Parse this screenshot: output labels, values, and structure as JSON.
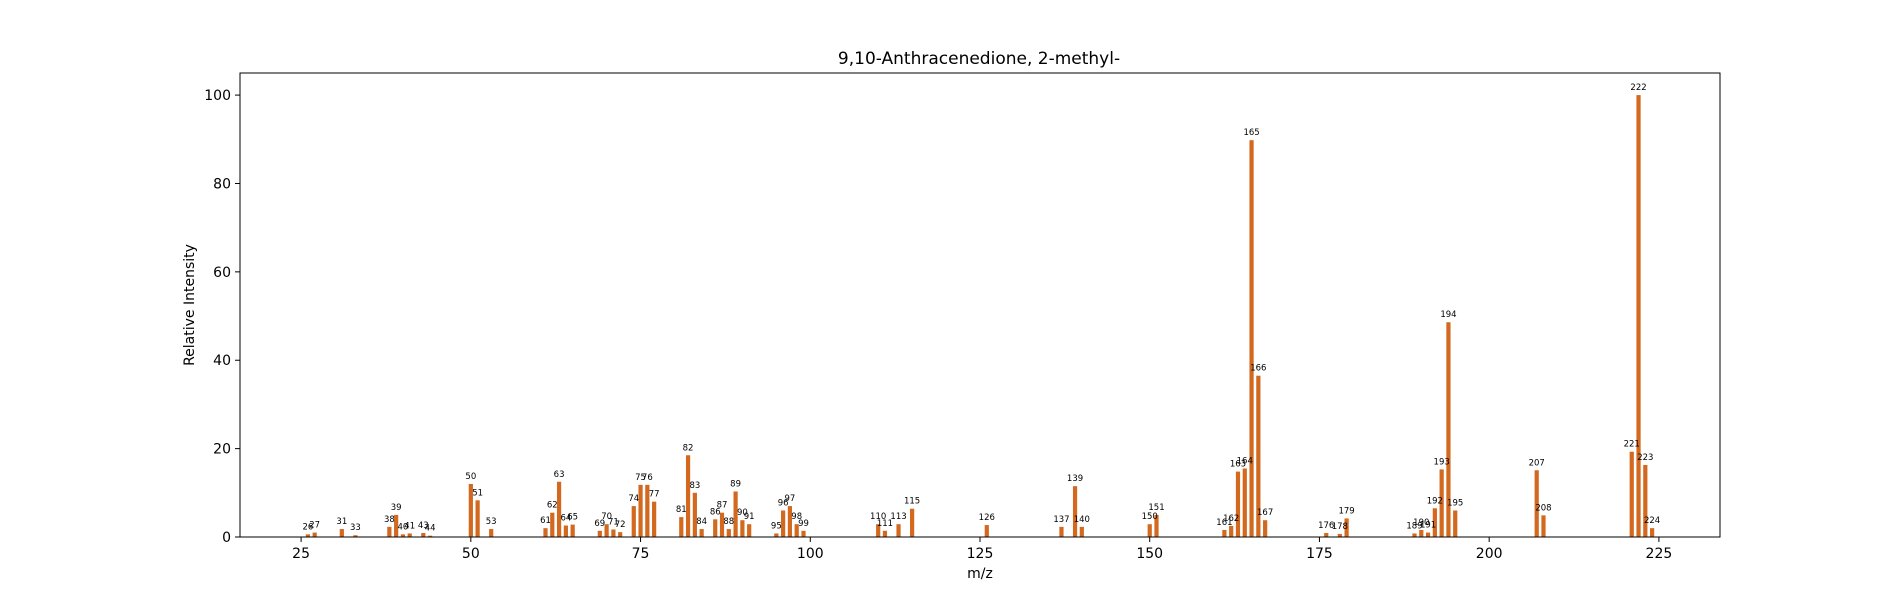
{
  "chart_data": {
    "type": "bar",
    "title": "9,10-Anthracenedione, 2-methyl-",
    "xlabel": "m/z",
    "ylabel": "Relative Intensity",
    "xlim": [
      16,
      234
    ],
    "ylim": [
      0,
      105
    ],
    "xticks": [
      25,
      50,
      75,
      100,
      125,
      150,
      175,
      200,
      225
    ],
    "yticks": [
      0,
      20,
      40,
      60,
      80,
      100
    ],
    "bar_color": "#d2691e",
    "grid": false,
    "peaks": [
      {
        "mz": 26,
        "intensity": 0.6,
        "label": "26"
      },
      {
        "mz": 27,
        "intensity": 1.0,
        "label": "27"
      },
      {
        "mz": 31,
        "intensity": 1.8,
        "label": "31"
      },
      {
        "mz": 33,
        "intensity": 0.4,
        "label": "33"
      },
      {
        "mz": 38,
        "intensity": 2.3,
        "label": "38"
      },
      {
        "mz": 39,
        "intensity": 5.0,
        "label": "39"
      },
      {
        "mz": 40,
        "intensity": 0.6,
        "label": "40"
      },
      {
        "mz": 41,
        "intensity": 0.8,
        "label": "41"
      },
      {
        "mz": 43,
        "intensity": 0.9,
        "label": "43"
      },
      {
        "mz": 44,
        "intensity": 0.3,
        "label": "44"
      },
      {
        "mz": 50,
        "intensity": 12.0,
        "label": "50"
      },
      {
        "mz": 51,
        "intensity": 8.3,
        "label": "51"
      },
      {
        "mz": 53,
        "intensity": 1.8,
        "label": "53"
      },
      {
        "mz": 61,
        "intensity": 2.0,
        "label": "61"
      },
      {
        "mz": 62,
        "intensity": 5.5,
        "label": "62"
      },
      {
        "mz": 63,
        "intensity": 12.5,
        "label": "63"
      },
      {
        "mz": 64,
        "intensity": 2.6,
        "label": "64"
      },
      {
        "mz": 65,
        "intensity": 2.8,
        "label": "65"
      },
      {
        "mz": 69,
        "intensity": 1.4,
        "label": "69"
      },
      {
        "mz": 70,
        "intensity": 2.9,
        "label": "70"
      },
      {
        "mz": 71,
        "intensity": 1.7,
        "label": "71"
      },
      {
        "mz": 72,
        "intensity": 1.1,
        "label": "72"
      },
      {
        "mz": 74,
        "intensity": 7.0,
        "label": "74"
      },
      {
        "mz": 75,
        "intensity": 11.8,
        "label": "75"
      },
      {
        "mz": 76,
        "intensity": 11.8,
        "label": "76"
      },
      {
        "mz": 77,
        "intensity": 8.0,
        "label": "77"
      },
      {
        "mz": 81,
        "intensity": 4.5,
        "label": "81"
      },
      {
        "mz": 82,
        "intensity": 18.5,
        "label": "82"
      },
      {
        "mz": 83,
        "intensity": 10.0,
        "label": "83"
      },
      {
        "mz": 84,
        "intensity": 1.8,
        "label": "84"
      },
      {
        "mz": 86,
        "intensity": 4.0,
        "label": "86"
      },
      {
        "mz": 87,
        "intensity": 5.5,
        "label": "87"
      },
      {
        "mz": 88,
        "intensity": 1.8,
        "label": "88"
      },
      {
        "mz": 89,
        "intensity": 10.3,
        "label": "89"
      },
      {
        "mz": 90,
        "intensity": 3.8,
        "label": "90"
      },
      {
        "mz": 91,
        "intensity": 2.9,
        "label": "91"
      },
      {
        "mz": 95,
        "intensity": 0.8,
        "label": "95"
      },
      {
        "mz": 96,
        "intensity": 6.0,
        "label": "96"
      },
      {
        "mz": 97,
        "intensity": 7.0,
        "label": "97"
      },
      {
        "mz": 98,
        "intensity": 2.9,
        "label": "98"
      },
      {
        "mz": 99,
        "intensity": 1.4,
        "label": "99"
      },
      {
        "mz": 110,
        "intensity": 2.9,
        "label": "110"
      },
      {
        "mz": 111,
        "intensity": 1.4,
        "label": "111"
      },
      {
        "mz": 113,
        "intensity": 2.9,
        "label": "113"
      },
      {
        "mz": 115,
        "intensity": 6.4,
        "label": "115"
      },
      {
        "mz": 126,
        "intensity": 2.7,
        "label": "126"
      },
      {
        "mz": 137,
        "intensity": 2.3,
        "label": "137"
      },
      {
        "mz": 139,
        "intensity": 11.5,
        "label": "139"
      },
      {
        "mz": 140,
        "intensity": 2.3,
        "label": "140"
      },
      {
        "mz": 150,
        "intensity": 2.9,
        "label": "150"
      },
      {
        "mz": 151,
        "intensity": 5.0,
        "label": "151"
      },
      {
        "mz": 161,
        "intensity": 1.6,
        "label": "161"
      },
      {
        "mz": 162,
        "intensity": 2.5,
        "label": "162"
      },
      {
        "mz": 163,
        "intensity": 14.8,
        "label": "163"
      },
      {
        "mz": 164,
        "intensity": 15.5,
        "label": "164"
      },
      {
        "mz": 165,
        "intensity": 89.8,
        "label": "165"
      },
      {
        "mz": 166,
        "intensity": 36.5,
        "label": "166"
      },
      {
        "mz": 167,
        "intensity": 3.8,
        "label": "167"
      },
      {
        "mz": 176,
        "intensity": 0.9,
        "label": "176"
      },
      {
        "mz": 178,
        "intensity": 0.7,
        "label": "178"
      },
      {
        "mz": 179,
        "intensity": 4.2,
        "label": "179"
      },
      {
        "mz": 189,
        "intensity": 0.8,
        "label": "189"
      },
      {
        "mz": 190,
        "intensity": 1.6,
        "label": "190"
      },
      {
        "mz": 191,
        "intensity": 1.0,
        "label": "191"
      },
      {
        "mz": 192,
        "intensity": 6.5,
        "label": "192"
      },
      {
        "mz": 193,
        "intensity": 15.3,
        "label": "193"
      },
      {
        "mz": 194,
        "intensity": 48.6,
        "label": "194"
      },
      {
        "mz": 195,
        "intensity": 6.0,
        "label": "195"
      },
      {
        "mz": 207,
        "intensity": 15.1,
        "label": "207"
      },
      {
        "mz": 208,
        "intensity": 4.9,
        "label": "208"
      },
      {
        "mz": 221,
        "intensity": 19.3,
        "label": "221"
      },
      {
        "mz": 222,
        "intensity": 100.0,
        "label": "222"
      },
      {
        "mz": 223,
        "intensity": 16.3,
        "label": "223"
      },
      {
        "mz": 224,
        "intensity": 2.0,
        "label": "224"
      }
    ]
  }
}
